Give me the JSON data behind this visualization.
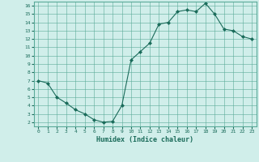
{
  "x": [
    0,
    1,
    2,
    3,
    4,
    5,
    6,
    7,
    8,
    9,
    10,
    11,
    12,
    13,
    14,
    15,
    16,
    17,
    18,
    19,
    20,
    21,
    22,
    23
  ],
  "y": [
    7.0,
    6.7,
    5.0,
    4.3,
    3.5,
    3.0,
    2.3,
    2.0,
    2.1,
    4.0,
    9.5,
    10.5,
    11.5,
    13.8,
    14.0,
    15.3,
    15.5,
    15.3,
    16.3,
    15.0,
    13.2,
    13.0,
    12.3,
    12.0
  ],
  "line_color": "#1a6b5a",
  "marker_color": "#1a6b5a",
  "bg_color": "#d0eeea",
  "grid_color": "#5aaa99",
  "xlabel": "Humidex (Indice chaleur)",
  "xlim": [
    -0.5,
    23.5
  ],
  "ylim": [
    1.5,
    16.5
  ],
  "yticks": [
    2,
    3,
    4,
    5,
    6,
    7,
    8,
    9,
    10,
    11,
    12,
    13,
    14,
    15,
    16
  ],
  "xticks": [
    0,
    1,
    2,
    3,
    4,
    5,
    6,
    7,
    8,
    9,
    10,
    11,
    12,
    13,
    14,
    15,
    16,
    17,
    18,
    19,
    20,
    21,
    22,
    23
  ],
  "label_color": "#1a6b5a",
  "tick_color": "#1a6b5a"
}
